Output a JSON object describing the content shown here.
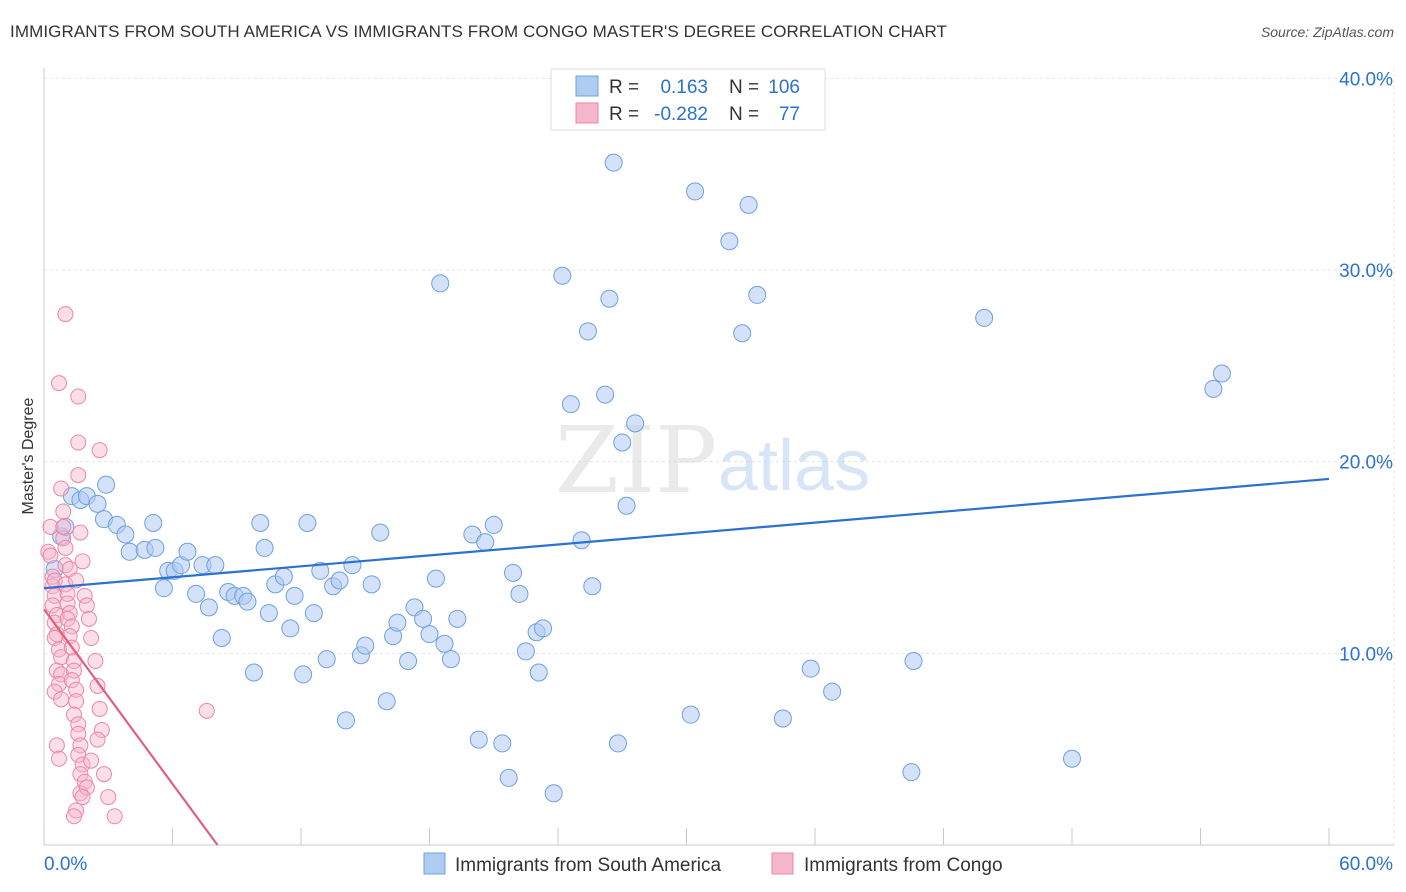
{
  "chart_data": {
    "type": "scatter",
    "title": "IMMIGRANTS FROM SOUTH AMERICA VS IMMIGRANTS FROM CONGO MASTER'S DEGREE CORRELATION CHART",
    "source": "Source: ZipAtlas.com",
    "xlabel": "",
    "ylabel": "Master's Degree",
    "xlim": [
      0,
      60
    ],
    "ylim": [
      0,
      42
    ],
    "x_tick_labels": [
      {
        "value": 0,
        "label": "0.0%"
      },
      {
        "value": 60,
        "label": "60.0%"
      }
    ],
    "y_tick_labels": [
      {
        "value": 10,
        "label": "10.0%"
      },
      {
        "value": 20,
        "label": "20.0%"
      },
      {
        "value": 30,
        "label": "30.0%"
      },
      {
        "value": 40,
        "label": "40.0%"
      }
    ],
    "watermark": {
      "zip": "ZIP",
      "atlas": "atlas"
    },
    "legend_stats": [
      {
        "r_label": "R =",
        "r_value": "0.163",
        "n_label": "N =",
        "n_value": "106"
      },
      {
        "r_label": "R =",
        "r_value": "-0.282",
        "n_label": "N =",
        "n_value": "77"
      }
    ],
    "series": [
      {
        "name": "Immigrants from South America",
        "color": "#6fa0e0",
        "fill": "#aecbf2",
        "line_color": "#2a72d0",
        "trend": {
          "x": [
            0,
            60
          ],
          "y": [
            13.4,
            19.1
          ]
        },
        "points": [
          [
            0.5,
            14.4
          ],
          [
            0.8,
            16.1
          ],
          [
            1.0,
            16.6
          ],
          [
            1.3,
            18.2
          ],
          [
            1.7,
            18.0
          ],
          [
            2.0,
            18.2
          ],
          [
            2.5,
            17.8
          ],
          [
            2.9,
            18.8
          ],
          [
            2.8,
            17.0
          ],
          [
            3.4,
            16.7
          ],
          [
            3.8,
            16.2
          ],
          [
            4.0,
            15.3
          ],
          [
            4.7,
            15.4
          ],
          [
            5.1,
            16.8
          ],
          [
            5.2,
            15.5
          ],
          [
            5.6,
            13.4
          ],
          [
            5.8,
            14.3
          ],
          [
            6.1,
            14.3
          ],
          [
            6.4,
            14.6
          ],
          [
            6.7,
            15.3
          ],
          [
            7.1,
            13.1
          ],
          [
            7.4,
            14.6
          ],
          [
            7.7,
            12.4
          ],
          [
            8.0,
            14.6
          ],
          [
            8.3,
            10.8
          ],
          [
            8.6,
            13.2
          ],
          [
            8.9,
            13.0
          ],
          [
            9.3,
            13.0
          ],
          [
            9.5,
            12.7
          ],
          [
            9.8,
            9.0
          ],
          [
            10.1,
            16.8
          ],
          [
            10.3,
            15.5
          ],
          [
            10.5,
            12.1
          ],
          [
            10.8,
            13.6
          ],
          [
            11.2,
            14.0
          ],
          [
            11.5,
            11.3
          ],
          [
            11.7,
            13.0
          ],
          [
            12.1,
            8.9
          ],
          [
            12.3,
            16.8
          ],
          [
            12.6,
            12.1
          ],
          [
            12.9,
            14.3
          ],
          [
            13.2,
            9.7
          ],
          [
            13.5,
            13.5
          ],
          [
            13.8,
            13.8
          ],
          [
            14.1,
            6.5
          ],
          [
            14.4,
            14.6
          ],
          [
            14.8,
            9.9
          ],
          [
            15.0,
            10.4
          ],
          [
            15.3,
            13.6
          ],
          [
            15.7,
            16.3
          ],
          [
            16.0,
            7.5
          ],
          [
            16.3,
            10.9
          ],
          [
            16.5,
            11.6
          ],
          [
            17.0,
            9.6
          ],
          [
            17.3,
            12.4
          ],
          [
            17.7,
            11.8
          ],
          [
            18.0,
            11.0
          ],
          [
            18.3,
            13.9
          ],
          [
            18.7,
            10.5
          ],
          [
            19.0,
            9.7
          ],
          [
            19.3,
            11.8
          ],
          [
            20.0,
            16.2
          ],
          [
            20.3,
            5.5
          ],
          [
            20.6,
            15.8
          ],
          [
            21.0,
            16.7
          ],
          [
            21.4,
            5.3
          ],
          [
            21.7,
            3.5
          ],
          [
            21.9,
            14.2
          ],
          [
            22.2,
            13.1
          ],
          [
            22.5,
            10.1
          ],
          [
            23.1,
            9.0
          ],
          [
            23.0,
            11.1
          ],
          [
            23.3,
            11.3
          ],
          [
            23.8,
            2.7
          ],
          [
            24.2,
            29.7
          ],
          [
            24.6,
            23.0
          ],
          [
            25.1,
            15.9
          ],
          [
            25.4,
            26.8
          ],
          [
            25.6,
            13.5
          ],
          [
            26.2,
            23.5
          ],
          [
            26.4,
            28.5
          ],
          [
            26.8,
            5.3
          ],
          [
            27.0,
            21.0
          ],
          [
            27.2,
            17.7
          ],
          [
            27.6,
            22.0
          ],
          [
            18.5,
            29.3
          ],
          [
            26.6,
            35.6
          ],
          [
            30.4,
            34.1
          ],
          [
            30.2,
            6.8
          ],
          [
            32.0,
            31.5
          ],
          [
            32.6,
            26.7
          ],
          [
            32.9,
            33.4
          ],
          [
            33.3,
            28.7
          ],
          [
            34.5,
            6.6
          ],
          [
            35.8,
            9.2
          ],
          [
            36.8,
            8.0
          ],
          [
            40.5,
            3.8
          ],
          [
            40.6,
            9.6
          ],
          [
            43.9,
            27.5
          ],
          [
            48.0,
            4.5
          ],
          [
            54.6,
            23.8
          ],
          [
            55.0,
            24.6
          ]
        ]
      },
      {
        "name": "Immigrants from Congo",
        "color": "#ee86a6",
        "fill": "#f6b6cb",
        "line_color": "#e0607e",
        "trend": {
          "x": [
            0,
            8.1
          ],
          "y": [
            12.3,
            0
          ]
        },
        "points": [
          [
            0.2,
            15.3
          ],
          [
            0.3,
            16.6
          ],
          [
            0.3,
            15.1
          ],
          [
            0.4,
            14.0
          ],
          [
            0.4,
            13.5
          ],
          [
            0.5,
            13.8
          ],
          [
            0.5,
            13.0
          ],
          [
            0.4,
            12.5
          ],
          [
            0.6,
            12.0
          ],
          [
            0.5,
            11.6
          ],
          [
            0.6,
            11.0
          ],
          [
            0.5,
            10.8
          ],
          [
            0.7,
            10.2
          ],
          [
            0.8,
            9.8
          ],
          [
            0.6,
            9.1
          ],
          [
            0.8,
            8.9
          ],
          [
            0.7,
            8.4
          ],
          [
            0.5,
            8.0
          ],
          [
            0.8,
            7.6
          ],
          [
            0.6,
            5.2
          ],
          [
            0.7,
            4.5
          ],
          [
            0.7,
            24.1
          ],
          [
            0.8,
            18.6
          ],
          [
            0.9,
            17.4
          ],
          [
            0.9,
            16.0
          ],
          [
            1.0,
            15.5
          ],
          [
            1.0,
            14.6
          ],
          [
            1.0,
            13.6
          ],
          [
            1.1,
            13.1
          ],
          [
            1.1,
            12.6
          ],
          [
            1.2,
            12.1
          ],
          [
            1.1,
            11.8
          ],
          [
            1.3,
            11.4
          ],
          [
            1.2,
            10.9
          ],
          [
            1.3,
            10.3
          ],
          [
            1.4,
            9.6
          ],
          [
            1.4,
            9.1
          ],
          [
            1.3,
            8.6
          ],
          [
            1.5,
            8.1
          ],
          [
            1.5,
            7.5
          ],
          [
            1.4,
            6.8
          ],
          [
            1.6,
            6.3
          ],
          [
            1.6,
            5.8
          ],
          [
            1.7,
            5.2
          ],
          [
            1.6,
            4.7
          ],
          [
            1.8,
            4.2
          ],
          [
            1.7,
            3.7
          ],
          [
            1.9,
            3.3
          ],
          [
            1.7,
            2.7
          ],
          [
            1.5,
            1.8
          ],
          [
            1.0,
            27.7
          ],
          [
            1.6,
            21.0
          ],
          [
            1.6,
            19.3
          ],
          [
            1.7,
            16.3
          ],
          [
            1.8,
            14.8
          ],
          [
            1.9,
            13.0
          ],
          [
            2.0,
            12.5
          ],
          [
            2.1,
            11.8
          ],
          [
            2.2,
            10.8
          ],
          [
            2.4,
            9.6
          ],
          [
            2.5,
            8.3
          ],
          [
            2.6,
            7.1
          ],
          [
            2.7,
            6.0
          ],
          [
            2.5,
            5.5
          ],
          [
            2.2,
            4.4
          ],
          [
            2.8,
            3.7
          ],
          [
            2.0,
            3.0
          ],
          [
            1.8,
            2.5
          ],
          [
            1.4,
            1.5
          ],
          [
            1.6,
            23.4
          ],
          [
            2.6,
            20.6
          ],
          [
            3.0,
            2.5
          ],
          [
            3.3,
            1.5
          ],
          [
            7.6,
            7.0
          ],
          [
            0.9,
            16.6
          ],
          [
            1.2,
            14.4
          ],
          [
            1.5,
            13.8
          ]
        ]
      }
    ]
  }
}
